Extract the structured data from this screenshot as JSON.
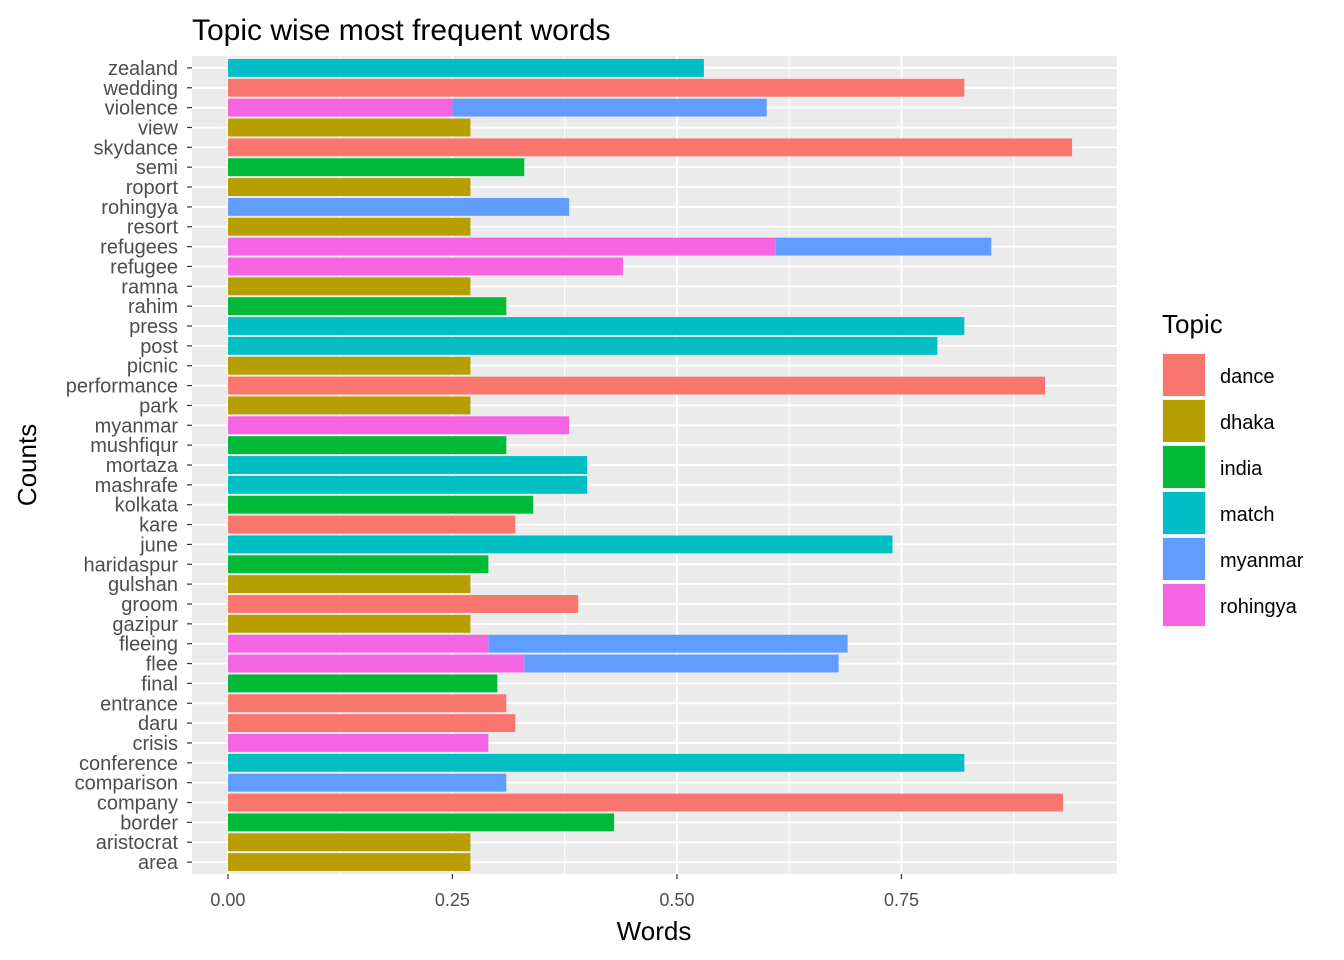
{
  "chart_data": {
    "type": "bar",
    "orientation": "horizontal",
    "stacked": true,
    "title": "Topic wise most frequent words",
    "xlabel": "Words",
    "ylabel": "Counts",
    "xlim": [
      -0.04,
      0.99
    ],
    "xticks": [
      0.0,
      0.25,
      0.5,
      0.75
    ],
    "xtick_labels": [
      "0.00",
      "0.25",
      "0.50",
      "0.75"
    ],
    "grid": true,
    "legend_position": "right",
    "legend_title": "Topic",
    "topics": [
      {
        "name": "dance",
        "color": "#F8766D"
      },
      {
        "name": "dhaka",
        "color": "#B79F00"
      },
      {
        "name": "india",
        "color": "#00BA38"
      },
      {
        "name": "match",
        "color": "#00BFC4"
      },
      {
        "name": "myanmar",
        "color": "#619CFF"
      },
      {
        "name": "rohingya",
        "color": "#F564E3"
      }
    ],
    "categories": [
      "zealand",
      "wedding",
      "violence",
      "view",
      "skydance",
      "semi",
      "roport",
      "rohingya",
      "resort",
      "refugees",
      "refugee",
      "ramna",
      "rahim",
      "press",
      "post",
      "picnic",
      "performance",
      "park",
      "myanmar",
      "mushfiqur",
      "mortaza",
      "mashrafe",
      "kolkata",
      "kare",
      "june",
      "haridaspur",
      "gulshan",
      "groom",
      "gazipur",
      "fleeing",
      "flee",
      "final",
      "entrance",
      "daru",
      "crisis",
      "conference",
      "comparison",
      "company",
      "border",
      "aristocrat",
      "area"
    ],
    "bars": [
      {
        "word": "zealand",
        "segments": [
          {
            "topic": "match",
            "value": 0.53
          }
        ]
      },
      {
        "word": "wedding",
        "segments": [
          {
            "topic": "dance",
            "value": 0.82
          }
        ]
      },
      {
        "word": "violence",
        "segments": [
          {
            "topic": "rohingya",
            "value": 0.25
          },
          {
            "topic": "myanmar",
            "value": 0.35
          }
        ]
      },
      {
        "word": "view",
        "segments": [
          {
            "topic": "dhaka",
            "value": 0.27
          }
        ]
      },
      {
        "word": "skydance",
        "segments": [
          {
            "topic": "dance",
            "value": 0.94
          }
        ]
      },
      {
        "word": "semi",
        "segments": [
          {
            "topic": "india",
            "value": 0.33
          }
        ]
      },
      {
        "word": "roport",
        "segments": [
          {
            "topic": "dhaka",
            "value": 0.27
          }
        ]
      },
      {
        "word": "rohingya",
        "segments": [
          {
            "topic": "myanmar",
            "value": 0.38
          }
        ]
      },
      {
        "word": "resort",
        "segments": [
          {
            "topic": "dhaka",
            "value": 0.27
          }
        ]
      },
      {
        "word": "refugees",
        "segments": [
          {
            "topic": "rohingya",
            "value": 0.61
          },
          {
            "topic": "myanmar",
            "value": 0.24
          }
        ]
      },
      {
        "word": "refugee",
        "segments": [
          {
            "topic": "rohingya",
            "value": 0.44
          }
        ]
      },
      {
        "word": "ramna",
        "segments": [
          {
            "topic": "dhaka",
            "value": 0.27
          }
        ]
      },
      {
        "word": "rahim",
        "segments": [
          {
            "topic": "india",
            "value": 0.31
          }
        ]
      },
      {
        "word": "press",
        "segments": [
          {
            "topic": "match",
            "value": 0.82
          }
        ]
      },
      {
        "word": "post",
        "segments": [
          {
            "topic": "match",
            "value": 0.79
          }
        ]
      },
      {
        "word": "picnic",
        "segments": [
          {
            "topic": "dhaka",
            "value": 0.27
          }
        ]
      },
      {
        "word": "performance",
        "segments": [
          {
            "topic": "dance",
            "value": 0.91
          }
        ]
      },
      {
        "word": "park",
        "segments": [
          {
            "topic": "dhaka",
            "value": 0.27
          }
        ]
      },
      {
        "word": "myanmar",
        "segments": [
          {
            "topic": "rohingya",
            "value": 0.38
          }
        ]
      },
      {
        "word": "mushfiqur",
        "segments": [
          {
            "topic": "india",
            "value": 0.31
          }
        ]
      },
      {
        "word": "mortaza",
        "segments": [
          {
            "topic": "match",
            "value": 0.4
          }
        ]
      },
      {
        "word": "mashrafe",
        "segments": [
          {
            "topic": "match",
            "value": 0.4
          }
        ]
      },
      {
        "word": "kolkata",
        "segments": [
          {
            "topic": "india",
            "value": 0.34
          }
        ]
      },
      {
        "word": "kare",
        "segments": [
          {
            "topic": "dance",
            "value": 0.32
          }
        ]
      },
      {
        "word": "june",
        "segments": [
          {
            "topic": "match",
            "value": 0.74
          }
        ]
      },
      {
        "word": "haridaspur",
        "segments": [
          {
            "topic": "india",
            "value": 0.29
          }
        ]
      },
      {
        "word": "gulshan",
        "segments": [
          {
            "topic": "dhaka",
            "value": 0.27
          }
        ]
      },
      {
        "word": "groom",
        "segments": [
          {
            "topic": "dance",
            "value": 0.39
          }
        ]
      },
      {
        "word": "gazipur",
        "segments": [
          {
            "topic": "dhaka",
            "value": 0.27
          }
        ]
      },
      {
        "word": "fleeing",
        "segments": [
          {
            "topic": "rohingya",
            "value": 0.29
          },
          {
            "topic": "myanmar",
            "value": 0.4
          }
        ]
      },
      {
        "word": "flee",
        "segments": [
          {
            "topic": "rohingya",
            "value": 0.33
          },
          {
            "topic": "myanmar",
            "value": 0.35
          }
        ]
      },
      {
        "word": "final",
        "segments": [
          {
            "topic": "india",
            "value": 0.3
          }
        ]
      },
      {
        "word": "entrance",
        "segments": [
          {
            "topic": "dance",
            "value": 0.31
          }
        ]
      },
      {
        "word": "daru",
        "segments": [
          {
            "topic": "dance",
            "value": 0.32
          }
        ]
      },
      {
        "word": "crisis",
        "segments": [
          {
            "topic": "rohingya",
            "value": 0.29
          }
        ]
      },
      {
        "word": "conference",
        "segments": [
          {
            "topic": "match",
            "value": 0.82
          }
        ]
      },
      {
        "word": "comparison",
        "segments": [
          {
            "topic": "myanmar",
            "value": 0.31
          }
        ]
      },
      {
        "word": "company",
        "segments": [
          {
            "topic": "dance",
            "value": 0.93
          }
        ]
      },
      {
        "word": "border",
        "segments": [
          {
            "topic": "india",
            "value": 0.43
          }
        ]
      },
      {
        "word": "aristocrat",
        "segments": [
          {
            "topic": "dhaka",
            "value": 0.27
          }
        ]
      },
      {
        "word": "area",
        "segments": [
          {
            "topic": "dhaka",
            "value": 0.27
          }
        ]
      }
    ]
  }
}
